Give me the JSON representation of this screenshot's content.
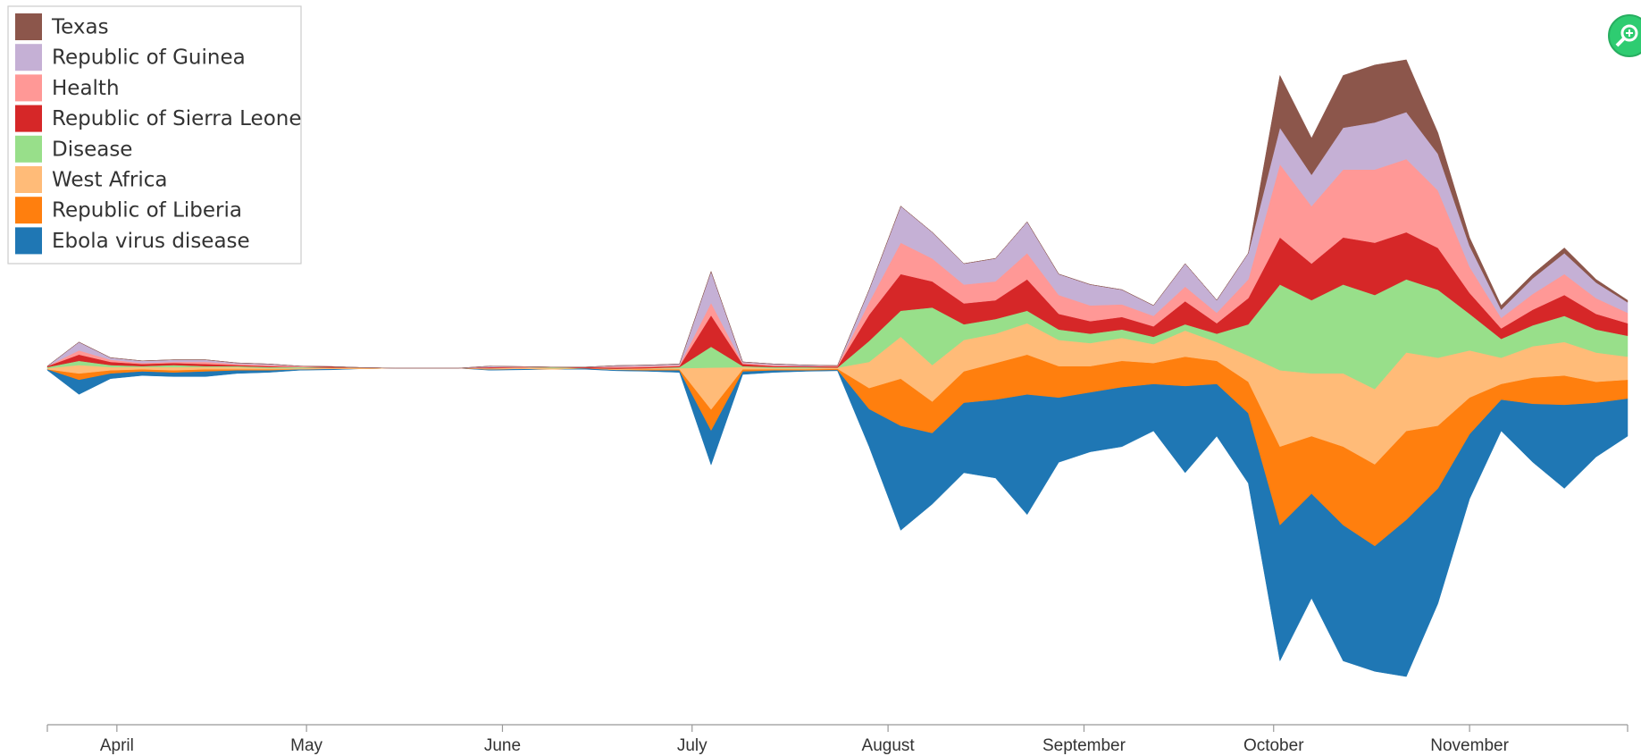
{
  "chart_data": {
    "type": "streamgraph",
    "x": [
      80,
      85,
      90,
      95,
      100,
      105,
      110,
      115,
      120,
      125,
      130,
      135,
      140,
      145,
      150,
      155,
      160,
      165,
      170,
      175,
      180,
      185,
      190,
      195,
      200,
      205,
      210,
      215,
      220,
      225,
      230,
      235,
      240,
      245,
      250,
      255,
      260,
      265,
      270,
      275,
      280,
      285,
      290,
      295,
      300,
      305,
      310,
      315,
      320,
      325,
      330
    ],
    "xlim": [
      80,
      330
    ],
    "xticks": [
      {
        "value": 91,
        "label": "April"
      },
      {
        "value": 121,
        "label": "May"
      },
      {
        "value": 152,
        "label": "June"
      },
      {
        "value": 182,
        "label": "July"
      },
      {
        "value": 213,
        "label": "August"
      },
      {
        "value": 244,
        "label": "September"
      },
      {
        "value": 274,
        "label": "October"
      },
      {
        "value": 305,
        "label": "November"
      }
    ],
    "legend": "top-left",
    "series": [
      {
        "name": "Texas",
        "color": "#8c564b",
        "values": [
          0,
          0,
          0,
          0,
          0,
          0,
          0,
          0,
          0,
          0,
          0,
          0,
          0,
          0,
          0,
          0,
          0,
          0,
          0,
          0,
          0,
          0,
          0,
          0,
          0,
          0,
          0,
          0,
          0,
          0,
          0,
          0,
          0,
          0,
          0,
          0,
          0,
          0,
          0,
          50,
          35,
          50,
          55,
          50,
          20,
          8,
          4,
          4,
          5,
          3,
          2
        ]
      },
      {
        "name": "Republic of Guinea",
        "color": "#c5b0d5",
        "values": [
          0,
          8,
          2,
          2,
          2,
          2,
          1,
          1,
          0,
          0,
          0,
          0,
          0,
          0,
          1,
          0,
          0,
          0,
          1,
          1,
          1,
          30,
          1,
          1,
          1,
          0,
          12,
          35,
          25,
          20,
          22,
          30,
          20,
          20,
          14,
          10,
          22,
          12,
          25,
          35,
          30,
          40,
          45,
          45,
          35,
          20,
          8,
          15,
          20,
          15,
          10
        ]
      },
      {
        "name": "Health",
        "color": "#ff9896",
        "values": [
          0,
          4,
          2,
          1,
          1,
          2,
          1,
          1,
          1,
          0,
          0,
          0,
          0,
          0,
          0,
          1,
          0,
          0,
          1,
          1,
          1,
          12,
          1,
          1,
          0,
          1,
          12,
          30,
          22,
          18,
          18,
          25,
          18,
          15,
          12,
          10,
          14,
          10,
          18,
          70,
          55,
          65,
          70,
          70,
          55,
          25,
          10,
          15,
          20,
          15,
          10
        ]
      },
      {
        "name": "Republic of Sierra Leone",
        "color": "#d62728",
        "values": [
          1,
          6,
          3,
          2,
          2,
          2,
          1,
          1,
          0,
          1,
          0,
          0,
          0,
          0,
          1,
          0,
          0,
          1,
          1,
          1,
          1,
          30,
          2,
          1,
          1,
          1,
          25,
          35,
          25,
          20,
          18,
          30,
          15,
          12,
          12,
          10,
          22,
          10,
          25,
          45,
          35,
          45,
          50,
          45,
          40,
          20,
          10,
          15,
          20,
          15,
          12
        ]
      },
      {
        "name": "Disease",
        "color": "#98df8a",
        "values": [
          1,
          4,
          2,
          1,
          2,
          1,
          1,
          1,
          1,
          0,
          0,
          0,
          0,
          0,
          0,
          0,
          1,
          0,
          0,
          0,
          1,
          20,
          1,
          1,
          1,
          0,
          20,
          25,
          55,
          15,
          14,
          12,
          10,
          9,
          8,
          7,
          6,
          8,
          30,
          82,
          70,
          85,
          90,
          70,
          65,
          35,
          18,
          20,
          25,
          22,
          20
        ]
      },
      {
        "name": "West Africa",
        "color": "#ffbb78",
        "values": [
          1,
          8,
          3,
          2,
          3,
          2,
          2,
          1,
          1,
          1,
          1,
          0,
          0,
          0,
          1,
          1,
          1,
          0,
          1,
          1,
          1,
          40,
          2,
          1,
          1,
          1,
          25,
          40,
          35,
          30,
          28,
          30,
          25,
          22,
          22,
          18,
          25,
          18,
          25,
          73,
          60,
          70,
          72,
          75,
          65,
          45,
          25,
          30,
          32,
          28,
          22
        ]
      },
      {
        "name": "Republic of Liberia",
        "color": "#ff7f0e",
        "values": [
          0,
          6,
          3,
          2,
          2,
          2,
          1,
          1,
          0,
          0,
          0,
          0,
          0,
          0,
          0,
          0,
          0,
          0,
          0,
          1,
          1,
          20,
          2,
          1,
          1,
          1,
          20,
          45,
          30,
          30,
          35,
          38,
          30,
          25,
          25,
          20,
          28,
          22,
          30,
          75,
          55,
          75,
          78,
          85,
          60,
          35,
          15,
          25,
          28,
          20,
          18
        ]
      },
      {
        "name": "Ebola virus disease",
        "color": "#1f77b4",
        "values": [
          1,
          14,
          5,
          4,
          4,
          5,
          3,
          2,
          1,
          1,
          0,
          0,
          0,
          0,
          1,
          1,
          0,
          1,
          1,
          1,
          2,
          33,
          3,
          2,
          1,
          1,
          36,
          100,
          68,
          67,
          75,
          115,
          62,
          57,
          57,
          45,
          83,
          50,
          67,
          130,
          100,
          130,
          120,
          150,
          110,
          62,
          30,
          56,
          80,
          52,
          36
        ]
      }
    ]
  }
}
